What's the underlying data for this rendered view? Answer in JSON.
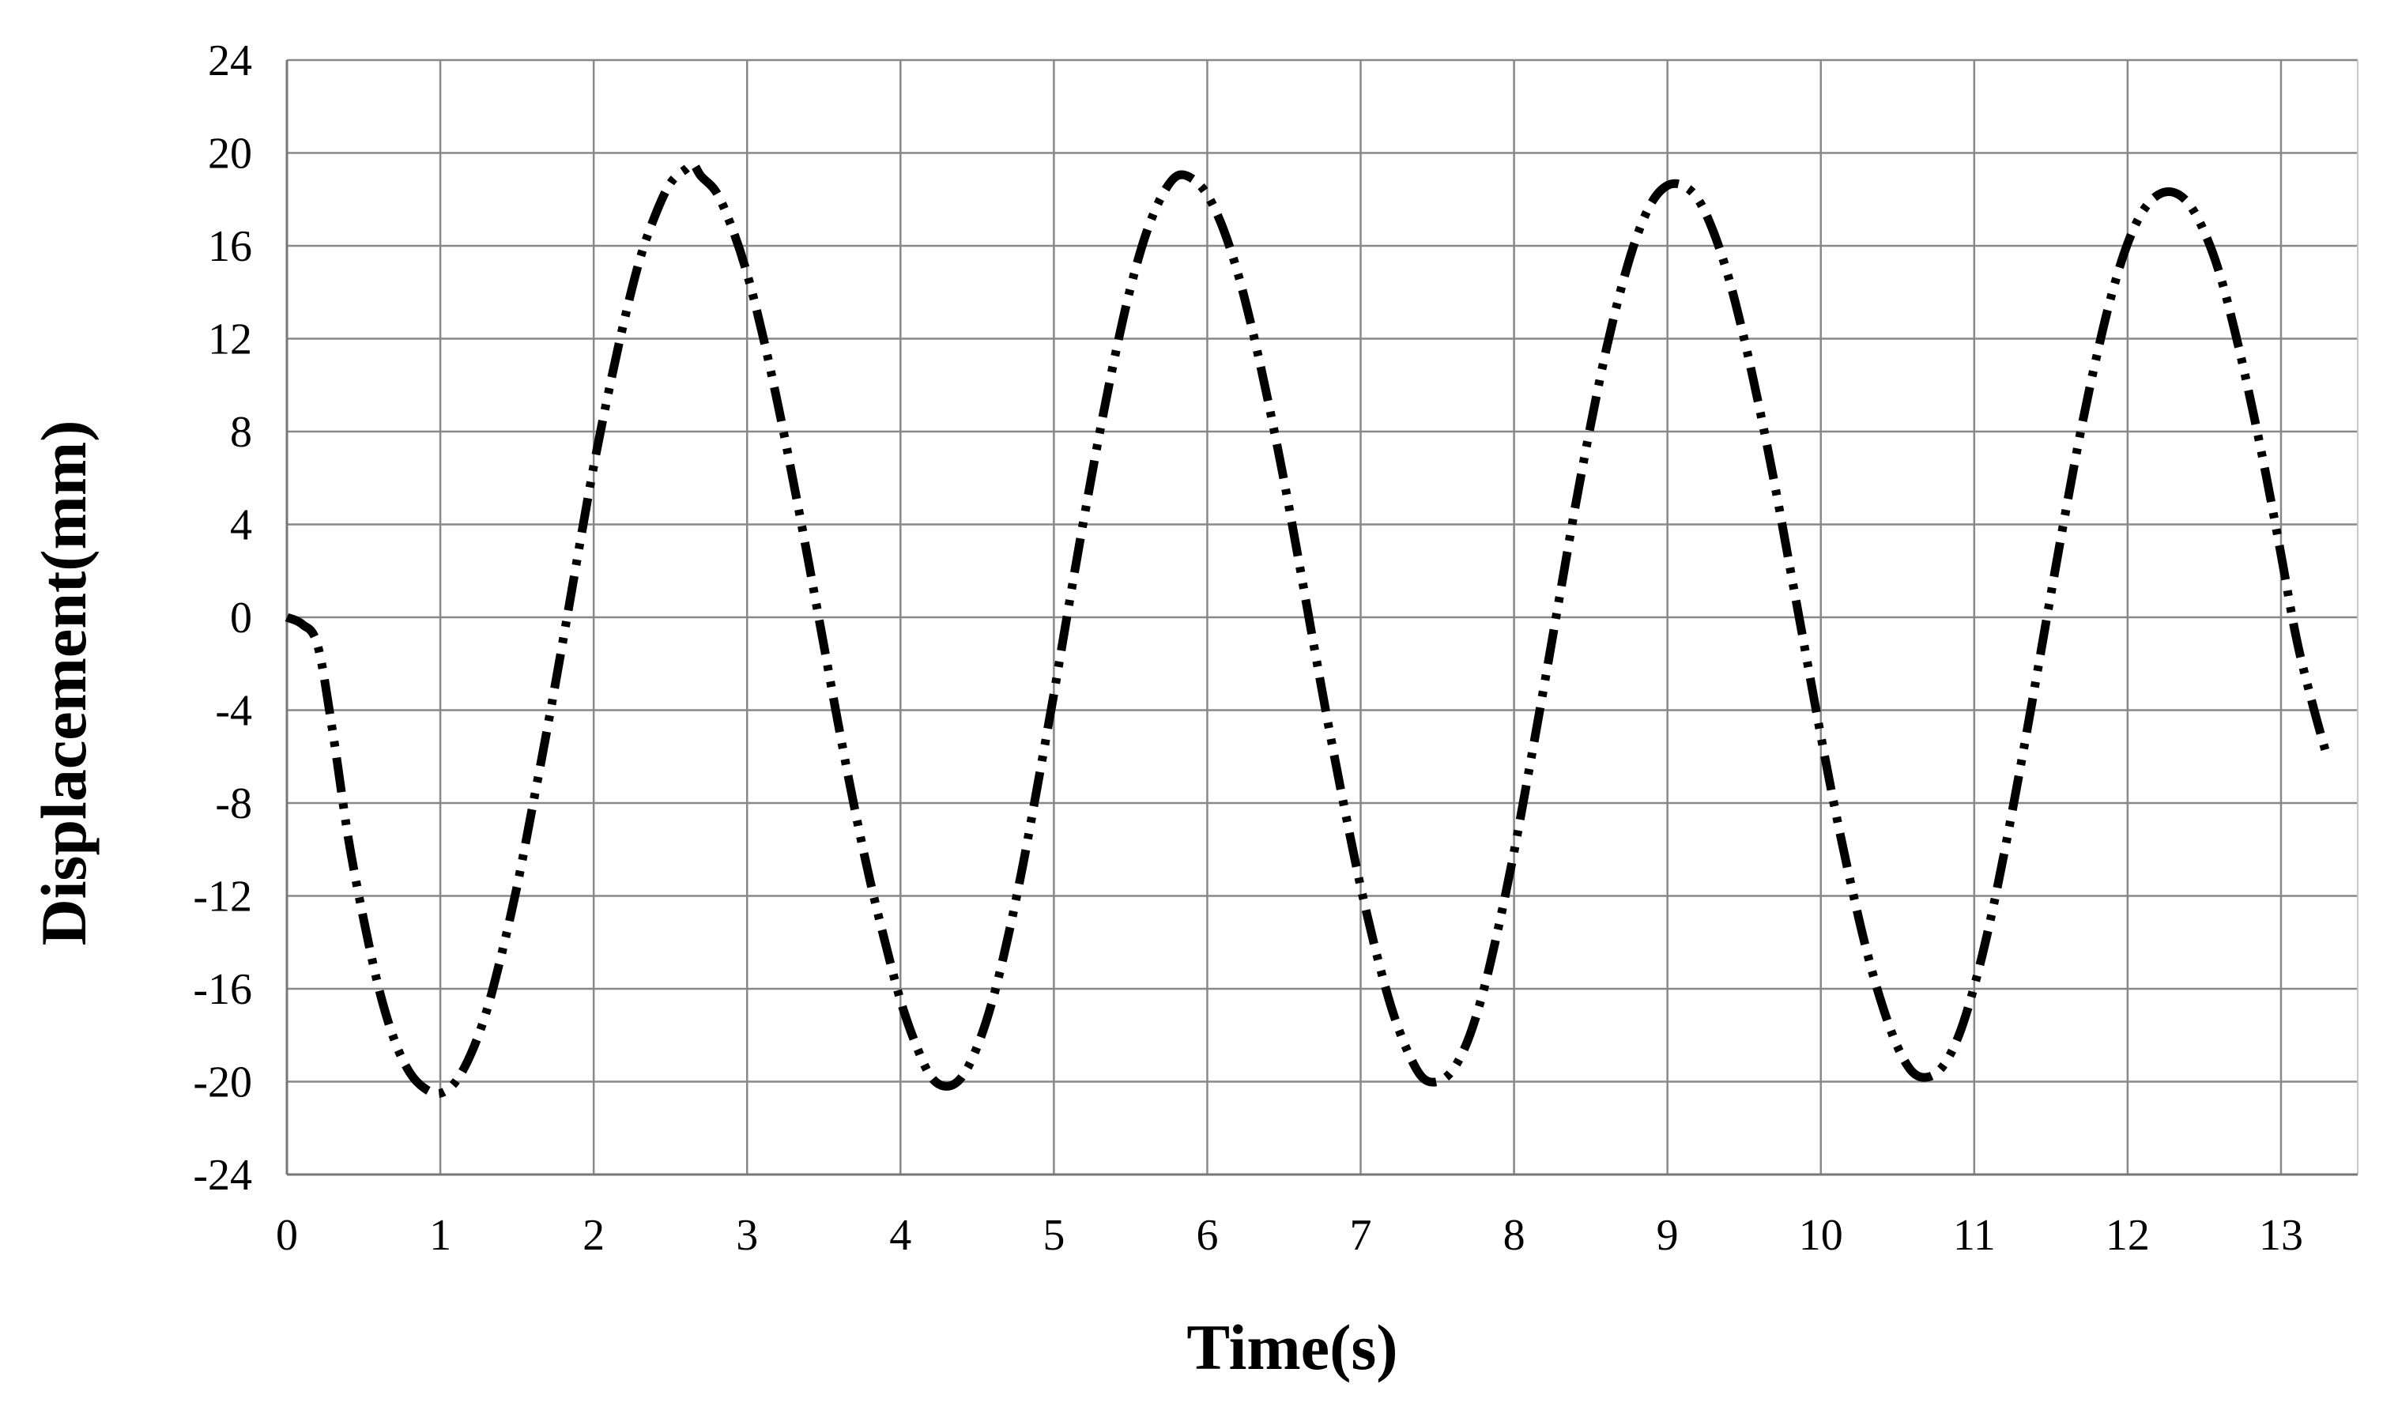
{
  "chart_data": {
    "type": "line",
    "title": "",
    "xlabel": "Time(s)",
    "ylabel": "Displacement(mm)",
    "xlim": [
      0,
      13.5
    ],
    "ylim": [
      -24,
      24
    ],
    "xticks": [
      0,
      1,
      2,
      3,
      4,
      5,
      6,
      7,
      8,
      9,
      10,
      11,
      12,
      13
    ],
    "yticks": [
      24,
      20,
      16,
      12,
      8,
      4,
      0,
      -4,
      -8,
      -12,
      -16,
      -20,
      -24
    ],
    "grid": true,
    "legend": "none",
    "series_color": "#000000",
    "line_style": "dash-dot-dot",
    "series": [
      {
        "points": [
          [
            0.0,
            0.0
          ],
          [
            0.1,
            -0.3
          ],
          [
            0.2,
            -1.2
          ],
          [
            0.3,
            -5.0
          ],
          [
            0.4,
            -9.5
          ],
          [
            0.5,
            -13.0
          ],
          [
            0.6,
            -16.0
          ],
          [
            0.7,
            -18.2
          ],
          [
            0.8,
            -19.6
          ],
          [
            0.9,
            -20.3
          ],
          [
            1.0,
            -20.5
          ],
          [
            1.1,
            -20.0
          ],
          [
            1.2,
            -18.8
          ],
          [
            1.3,
            -17.0
          ],
          [
            1.4,
            -14.5
          ],
          [
            1.5,
            -11.6
          ],
          [
            1.6,
            -8.2
          ],
          [
            1.7,
            -4.7
          ],
          [
            1.8,
            -1.0
          ],
          [
            1.9,
            2.8
          ],
          [
            2.0,
            6.5
          ],
          [
            2.1,
            9.8
          ],
          [
            2.2,
            12.8
          ],
          [
            2.3,
            15.4
          ],
          [
            2.4,
            17.3
          ],
          [
            2.5,
            18.7
          ],
          [
            2.6,
            19.3
          ],
          [
            2.65,
            19.5
          ],
          [
            2.7,
            19.0
          ],
          [
            2.8,
            18.3
          ],
          [
            2.9,
            16.8
          ],
          [
            3.0,
            14.8
          ],
          [
            3.1,
            12.2
          ],
          [
            3.2,
            9.2
          ],
          [
            3.3,
            5.9
          ],
          [
            3.4,
            2.4
          ],
          [
            3.5,
            -1.2
          ],
          [
            3.6,
            -4.8
          ],
          [
            3.7,
            -8.2
          ],
          [
            3.8,
            -11.3
          ],
          [
            3.9,
            -14.0
          ],
          [
            4.0,
            -16.5
          ],
          [
            4.1,
            -18.4
          ],
          [
            4.2,
            -19.8
          ],
          [
            4.3,
            -20.2
          ],
          [
            4.4,
            -19.8
          ],
          [
            4.5,
            -18.5
          ],
          [
            4.6,
            -16.5
          ],
          [
            4.7,
            -13.8
          ],
          [
            4.8,
            -10.6
          ],
          [
            4.9,
            -7.0
          ],
          [
            5.0,
            -3.3
          ],
          [
            5.1,
            0.6
          ],
          [
            5.2,
            4.4
          ],
          [
            5.3,
            8.0
          ],
          [
            5.4,
            11.3
          ],
          [
            5.5,
            14.2
          ],
          [
            5.6,
            16.5
          ],
          [
            5.7,
            18.1
          ],
          [
            5.8,
            19.0
          ],
          [
            5.9,
            18.9
          ],
          [
            6.0,
            18.2
          ],
          [
            6.1,
            16.8
          ],
          [
            6.2,
            14.8
          ],
          [
            6.3,
            12.2
          ],
          [
            6.4,
            9.2
          ],
          [
            6.5,
            5.9
          ],
          [
            6.6,
            2.3
          ],
          [
            6.7,
            -1.4
          ],
          [
            6.8,
            -5.0
          ],
          [
            6.9,
            -8.4
          ],
          [
            7.0,
            -11.6
          ],
          [
            7.1,
            -14.4
          ],
          [
            7.2,
            -16.8
          ],
          [
            7.3,
            -18.6
          ],
          [
            7.4,
            -19.8
          ],
          [
            7.5,
            -20.0
          ],
          [
            7.6,
            -19.5
          ],
          [
            7.7,
            -18.2
          ],
          [
            7.8,
            -16.1
          ],
          [
            7.9,
            -13.3
          ],
          [
            8.0,
            -10.1
          ],
          [
            8.1,
            -6.5
          ],
          [
            8.2,
            -2.8
          ],
          [
            8.3,
            1.0
          ],
          [
            8.4,
            4.8
          ],
          [
            8.5,
            8.3
          ],
          [
            8.6,
            11.5
          ],
          [
            8.7,
            14.2
          ],
          [
            8.8,
            16.4
          ],
          [
            8.9,
            17.9
          ],
          [
            9.0,
            18.6
          ],
          [
            9.1,
            18.6
          ],
          [
            9.2,
            18.0
          ],
          [
            9.3,
            16.6
          ],
          [
            9.4,
            14.6
          ],
          [
            9.5,
            12.0
          ],
          [
            9.6,
            9.0
          ],
          [
            9.7,
            5.7
          ],
          [
            9.8,
            2.1
          ],
          [
            9.9,
            -1.5
          ],
          [
            10.0,
            -5.1
          ],
          [
            10.1,
            -8.5
          ],
          [
            10.2,
            -11.6
          ],
          [
            10.3,
            -14.4
          ],
          [
            10.4,
            -16.7
          ],
          [
            10.5,
            -18.5
          ],
          [
            10.6,
            -19.6
          ],
          [
            10.7,
            -19.8
          ],
          [
            10.8,
            -19.3
          ],
          [
            10.9,
            -18.0
          ],
          [
            11.0,
            -15.9
          ],
          [
            11.1,
            -13.2
          ],
          [
            11.2,
            -10.0
          ],
          [
            11.3,
            -6.5
          ],
          [
            11.4,
            -2.8
          ],
          [
            11.5,
            1.0
          ],
          [
            11.6,
            4.7
          ],
          [
            11.7,
            8.2
          ],
          [
            11.8,
            11.3
          ],
          [
            11.9,
            14.0
          ],
          [
            12.0,
            16.1
          ],
          [
            12.1,
            17.5
          ],
          [
            12.2,
            18.2
          ],
          [
            12.3,
            18.3
          ],
          [
            12.4,
            17.8
          ],
          [
            12.5,
            16.6
          ],
          [
            12.6,
            14.8
          ],
          [
            12.7,
            12.3
          ],
          [
            12.8,
            9.4
          ],
          [
            12.9,
            6.2
          ],
          [
            13.0,
            2.7
          ],
          [
            13.1,
            -0.9
          ],
          [
            13.2,
            -3.6
          ],
          [
            13.3,
            -6.0
          ]
        ]
      }
    ]
  }
}
